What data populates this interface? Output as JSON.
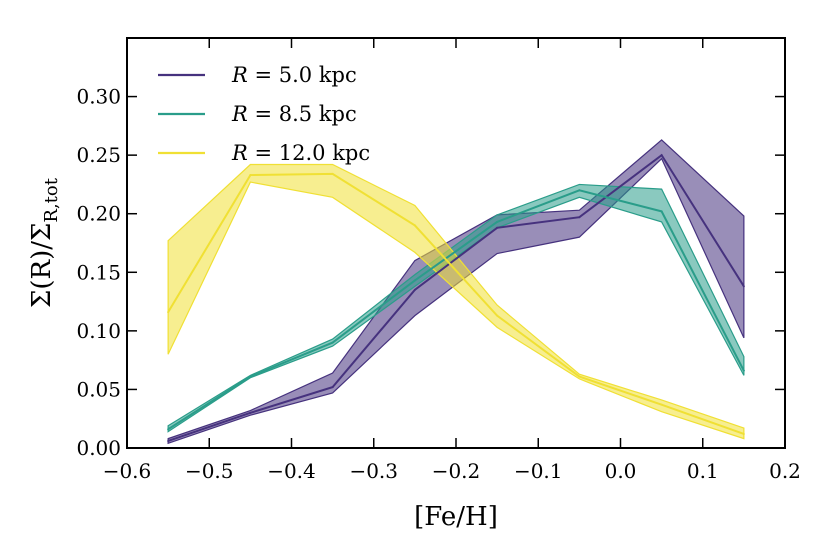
{
  "chart_data": {
    "type": "line",
    "xlabel": "[Fe/H]",
    "ylabel": "Σ(R)/Σ_R,tot",
    "ylabel_main": "Σ(R)/Σ",
    "ylabel_sub": "R,tot",
    "xlim": [
      -0.6,
      0.2
    ],
    "ylim": [
      0.0,
      0.35
    ],
    "xticks": [
      -0.6,
      -0.5,
      -0.4,
      -0.3,
      -0.2,
      -0.1,
      0.0,
      0.1,
      0.2
    ],
    "xtick_labels": [
      "−0.6",
      "−0.5",
      "−0.4",
      "−0.3",
      "−0.2",
      "−0.1",
      "0.0",
      "0.1",
      "0.2"
    ],
    "yticks": [
      0.0,
      0.05,
      0.1,
      0.15,
      0.2,
      0.25,
      0.3
    ],
    "ytick_labels": [
      "0.00",
      "0.05",
      "0.10",
      "0.15",
      "0.20",
      "0.25",
      "0.30"
    ],
    "grid": false,
    "legend_position": "top-left",
    "x": [
      -0.55,
      -0.45,
      -0.35,
      -0.25,
      -0.15,
      -0.05,
      0.05,
      0.15
    ],
    "series": [
      {
        "name": "R = 5.0 kpc",
        "label_var": "R",
        "label_value": "5.0 kpc",
        "color": "#46327e",
        "values": [
          0.006,
          0.03,
          0.052,
          0.135,
          0.188,
          0.197,
          0.25,
          0.138
        ],
        "lower": [
          0.004,
          0.028,
          0.047,
          0.113,
          0.166,
          0.18,
          0.247,
          0.094
        ],
        "upper": [
          0.008,
          0.032,
          0.064,
          0.16,
          0.199,
          0.203,
          0.263,
          0.198
        ]
      },
      {
        "name": "R = 8.5 kpc",
        "label_var": "R",
        "label_value": "8.5 kpc",
        "color": "#2a9d8a",
        "values": [
          0.016,
          0.061,
          0.09,
          0.143,
          0.193,
          0.22,
          0.202,
          0.066
        ],
        "lower": [
          0.014,
          0.06,
          0.087,
          0.138,
          0.188,
          0.214,
          0.193,
          0.062
        ],
        "upper": [
          0.019,
          0.062,
          0.093,
          0.148,
          0.199,
          0.225,
          0.221,
          0.078
        ]
      },
      {
        "name": "R = 12.0 kpc",
        "label_var": "R",
        "label_value": "12.0 kpc",
        "color": "#f0e034",
        "values": [
          0.116,
          0.233,
          0.234,
          0.19,
          0.113,
          0.061,
          0.037,
          0.012
        ],
        "lower": [
          0.08,
          0.227,
          0.214,
          0.167,
          0.103,
          0.059,
          0.031,
          0.008
        ],
        "upper": [
          0.177,
          0.242,
          0.242,
          0.207,
          0.122,
          0.063,
          0.041,
          0.017
        ]
      }
    ]
  }
}
